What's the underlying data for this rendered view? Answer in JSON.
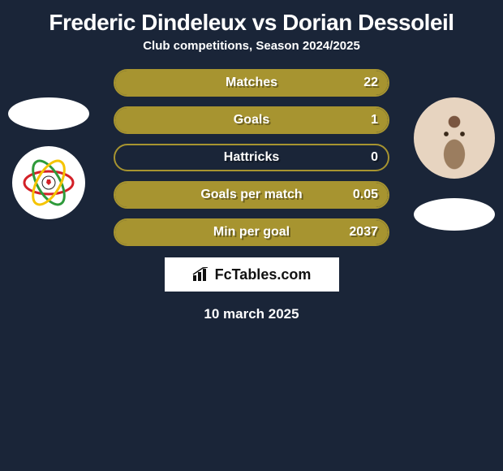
{
  "colors": {
    "background": "#1a2538",
    "bar_border": "#a79430",
    "bar_fill": "#a79430",
    "text": "#ffffff",
    "shadow": "rgba(0,0,0,0.35)",
    "brand_bg": "#ffffff",
    "brand_text": "#111111"
  },
  "header": {
    "title": "Frederic Dindeleux vs Dorian Dessoleil",
    "subtitle": "Club competitions, Season 2024/2025",
    "title_fontsize": 28,
    "subtitle_fontsize": 15
  },
  "left": {
    "avatar_present": false,
    "club_name": "SV Zulte Waregem",
    "club_colors": [
      "#d32027",
      "#2e9a3a",
      "#f5c400"
    ]
  },
  "right": {
    "avatar_present": true,
    "club_present": false
  },
  "stats": [
    {
      "label": "Matches",
      "left_val": "",
      "right_val": "22",
      "left_fill_pct": 0,
      "right_fill_pct": 100
    },
    {
      "label": "Goals",
      "left_val": "",
      "right_val": "1",
      "left_fill_pct": 0,
      "right_fill_pct": 100
    },
    {
      "label": "Hattricks",
      "left_val": "",
      "right_val": "0",
      "left_fill_pct": 0,
      "right_fill_pct": 0
    },
    {
      "label": "Goals per match",
      "left_val": "",
      "right_val": "0.05",
      "left_fill_pct": 0,
      "right_fill_pct": 100
    },
    {
      "label": "Min per goal",
      "left_val": "",
      "right_val": "2037",
      "left_fill_pct": 0,
      "right_fill_pct": 100
    }
  ],
  "bar_style": {
    "height": 34,
    "radius": 17,
    "border_width": 2,
    "gap": 12,
    "label_fontsize": 16
  },
  "brand": {
    "text": "FcTables.com",
    "icon": "bar-chart"
  },
  "footer": {
    "date": "10 march 2025",
    "fontsize": 17
  }
}
